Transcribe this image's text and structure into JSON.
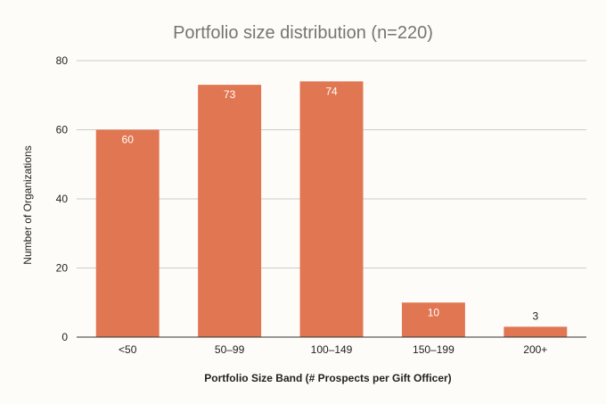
{
  "chart_data": {
    "type": "bar",
    "title": "Portfolio size distribution (n=220)",
    "xlabel": "Portfolio Size Band (# Prospects per Gift Officer)",
    "ylabel": "Number of Organizations",
    "categories": [
      "<50",
      "50–99",
      "100–149",
      "150–199",
      "200+"
    ],
    "values": [
      60,
      73,
      74,
      10,
      3
    ],
    "data_labels": [
      "60",
      "73",
      "74",
      "10",
      "3"
    ],
    "ylim": [
      0,
      80
    ],
    "yticks": [
      0,
      20,
      40,
      60,
      80
    ],
    "ytick_labels": [
      "0",
      "20",
      "40",
      "60",
      "80"
    ],
    "grid": true,
    "legend": "none",
    "colors": {
      "bar": "#e07652",
      "label_inside": "#ffffff",
      "label_outside": "#222222"
    }
  }
}
